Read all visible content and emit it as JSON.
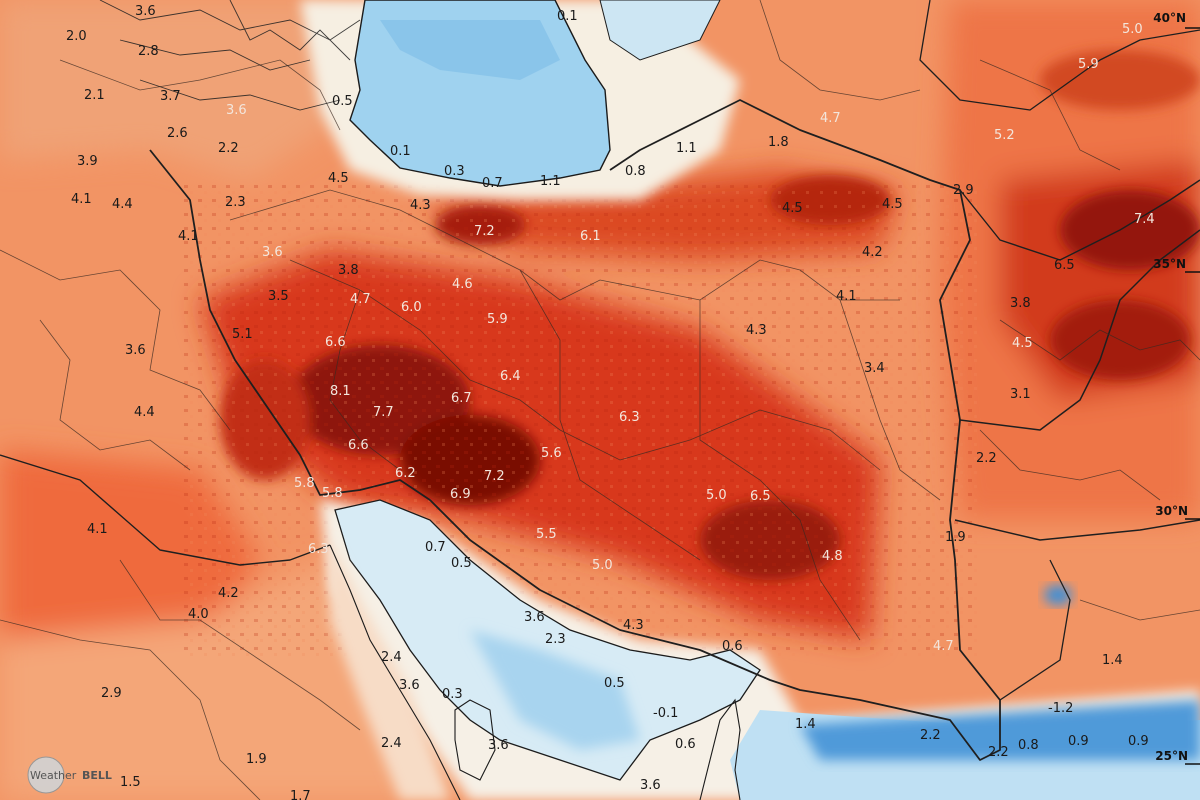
{
  "map": {
    "latitude_labels": {
      "lat40": "40°N",
      "lat35": "35°N",
      "lat30": "30°N",
      "lat25": "25°N"
    },
    "brand": {
      "weather": "Weather",
      "bell": "BELL"
    },
    "colors": {
      "warm_low": "#f7b78a",
      "warm_mid": "#ef7b4e",
      "warm_high": "#d9371d",
      "hot": "#9e1a0c",
      "very_hot": "#6f0d06",
      "neutral": "#f4f1ea",
      "cool_light": "#cfe6f3",
      "cool": "#8fc8ea",
      "cold": "#3f8fd6"
    },
    "values": {
      "v_3_6_nw": "3.6",
      "v_2_0": "2.0",
      "v_2_8": "2.8",
      "v_2_1": "2.1",
      "v_3_7": "3.7",
      "v_3_6_a": "3.6",
      "v_2_6": "2.6",
      "v_2_2_a": "2.2",
      "v_3_9": "3.9",
      "v_4_1_a": "4.1",
      "v_4_4_a": "4.4",
      "v_2_3_a": "2.3",
      "v_4_5_a": "4.5",
      "v_0_5_a": "0.5",
      "v_0_1_a": "0.1",
      "v_0_3_a": "0.3",
      "v_0_7_a": "0.7",
      "v_1_1_a": "1.1",
      "v_0_8_a": "0.8",
      "v_1_1_b": "1.1",
      "v_0_1_b": "0.1",
      "v_1_8": "1.8",
      "v_4_7_a": "4.7",
      "v_2_9_a": "2.9",
      "v_5_0_a": "5.0",
      "v_5_9_a": "5.9",
      "v_5_2": "5.2",
      "v_4_5_b": "4.5",
      "v_4_5_c": "4.5",
      "v_4_2_a": "4.2",
      "v_7_4": "7.4",
      "v_6_5_a": "6.5",
      "v_4_3_a": "4.3",
      "v_7_2_a": "7.2",
      "v_6_1": "6.1",
      "v_4_1_b": "4.1",
      "v_3_6_b": "3.6",
      "v_3_8_a": "3.8",
      "v_3_5": "3.5",
      "v_4_7_b": "4.7",
      "v_6_0": "6.0",
      "v_4_6": "4.6",
      "v_5_9_b": "5.9",
      "v_4_1_c": "4.1",
      "v_4_3_b": "4.3",
      "v_3_8_b": "3.8",
      "v_4_5_d": "4.5",
      "v_5_1": "5.1",
      "v_6_6_a": "6.6",
      "v_3_6_c": "3.6",
      "v_8_1": "8.1",
      "v_7_7": "7.7",
      "v_6_7": "6.7",
      "v_6_4": "6.4",
      "v_3_4": "3.4",
      "v_3_1": "3.1",
      "v_4_4_b": "4.4",
      "v_6_3_a": "6.3",
      "v_6_6_b": "6.6",
      "v_5_6": "5.6",
      "v_2_2_b": "2.2",
      "v_6_2": "6.2",
      "v_7_2_b": "7.2",
      "v_5_8_a": "5.8",
      "v_5_8_b": "5.8",
      "v_6_9": "6.9",
      "v_5_0_b": "5.0",
      "v_6_5_b": "6.5",
      "v_4_1_d": "4.1",
      "v_1_9_a": "1.9",
      "v_6_3_b": "6.3",
      "v_5_5": "5.5",
      "v_0_7_b": "0.7",
      "v_0_5_b": "0.5",
      "v_4_8": "4.8",
      "v_5_0_c": "5.0",
      "v_4_2_b": "4.2",
      "v_4_0": "4.0",
      "v_3_6_d": "3.6",
      "v_2_3_b": "2.3",
      "v_4_3_c": "4.3",
      "v_4_7_c": "4.7",
      "v_1_4_a": "1.4",
      "v_2_9_b": "2.9",
      "v_2_4_a": "2.4",
      "v_0_6_a": "0.6",
      "v_3_6_e": "3.6",
      "v_0_5_c": "0.5",
      "v_0_3_b": "0.3",
      "v_0_1_c": "-0.1",
      "v_1_2": "-1.2",
      "v_1_4_b": "1.4",
      "v_2_2_c": "2.2",
      "v_2_2_d": "2.2",
      "v_0_8_b": "0.8",
      "v_0_9_a": "0.9",
      "v_0_9_b": "0.9",
      "v_2_4_b": "2.4",
      "v_3_6_f": "3.6",
      "v_0_6_b": "0.6",
      "v_1_9_b": "1.9",
      "v_1_5": "1.5",
      "v_1_7": "1.7",
      "v_3_6_g": "3.6"
    }
  }
}
